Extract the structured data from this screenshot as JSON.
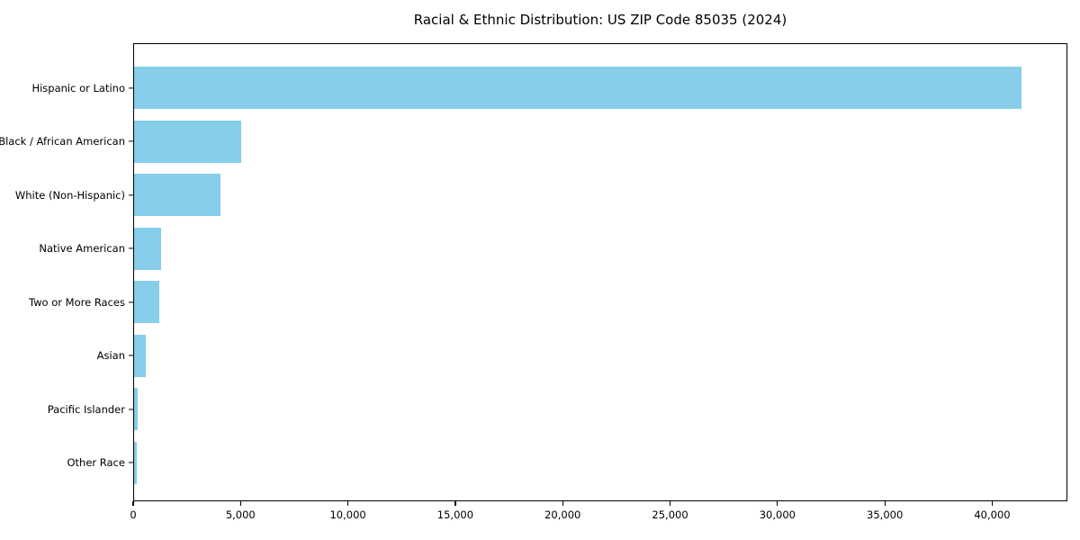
{
  "chart_data": {
    "type": "bar",
    "orientation": "horizontal",
    "title": "Racial & Ethnic Distribution: US ZIP Code 85035 (2024)",
    "categories": [
      "Hispanic or Latino",
      "Black / African American",
      "White (Non-Hispanic)",
      "Native American",
      "Two or More Races",
      "Asian",
      "Pacific Islander",
      "Other Race"
    ],
    "values": [
      41380,
      4980,
      4020,
      1260,
      1170,
      550,
      170,
      125
    ],
    "xlabel": "",
    "ylabel": "",
    "xlim": [
      0,
      43500
    ],
    "x_ticks": [
      0,
      5000,
      10000,
      15000,
      20000,
      25000,
      30000,
      35000,
      40000
    ],
    "x_tick_labels": [
      "0",
      "5,000",
      "10,000",
      "15,000",
      "20,000",
      "25,000",
      "30,000",
      "35,000",
      "40,000"
    ],
    "bar_color": "#87CEEB",
    "frame_color": "#000000",
    "grid": false,
    "legend": null
  }
}
